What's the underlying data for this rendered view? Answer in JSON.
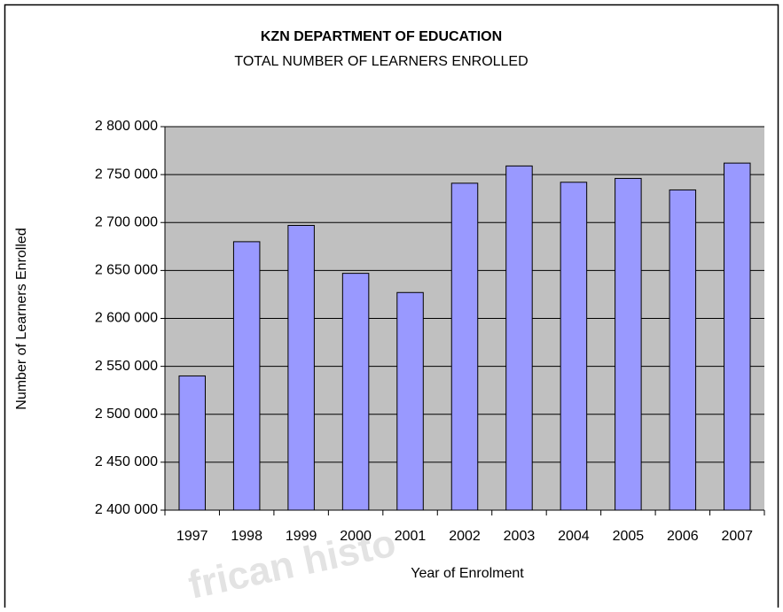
{
  "chart_data": {
    "type": "bar",
    "title": "KZN DEPARTMENT OF EDUCATION",
    "subtitle": "TOTAL NUMBER OF LEARNERS ENROLLED",
    "xlabel": "Year of Enrolment",
    "ylabel": "Number of Learners Enrolled",
    "watermark": "frican histo",
    "categories": [
      "1997",
      "1998",
      "1999",
      "2000",
      "2001",
      "2002",
      "2003",
      "2004",
      "2005",
      "2006",
      "2007"
    ],
    "values": [
      2540000,
      2680000,
      2697000,
      2647000,
      2627000,
      2741000,
      2759000,
      2742000,
      2746000,
      2734000,
      2762000
    ],
    "color": "#9999ff",
    "ylim": [
      2400000,
      2800000
    ],
    "yticks": [
      {
        "value": 2400000,
        "label": "2 400 000"
      },
      {
        "value": 2450000,
        "label": "2 450 000"
      },
      {
        "value": 2500000,
        "label": "2 500 000"
      },
      {
        "value": 2550000,
        "label": "2 550 000"
      },
      {
        "value": 2600000,
        "label": "2 600 000"
      },
      {
        "value": 2650000,
        "label": "2 650 000"
      },
      {
        "value": 2700000,
        "label": "2 700 000"
      },
      {
        "value": 2750000,
        "label": "2 750 000"
      },
      {
        "value": 2800000,
        "label": "2 800 000"
      }
    ],
    "grid": true
  }
}
